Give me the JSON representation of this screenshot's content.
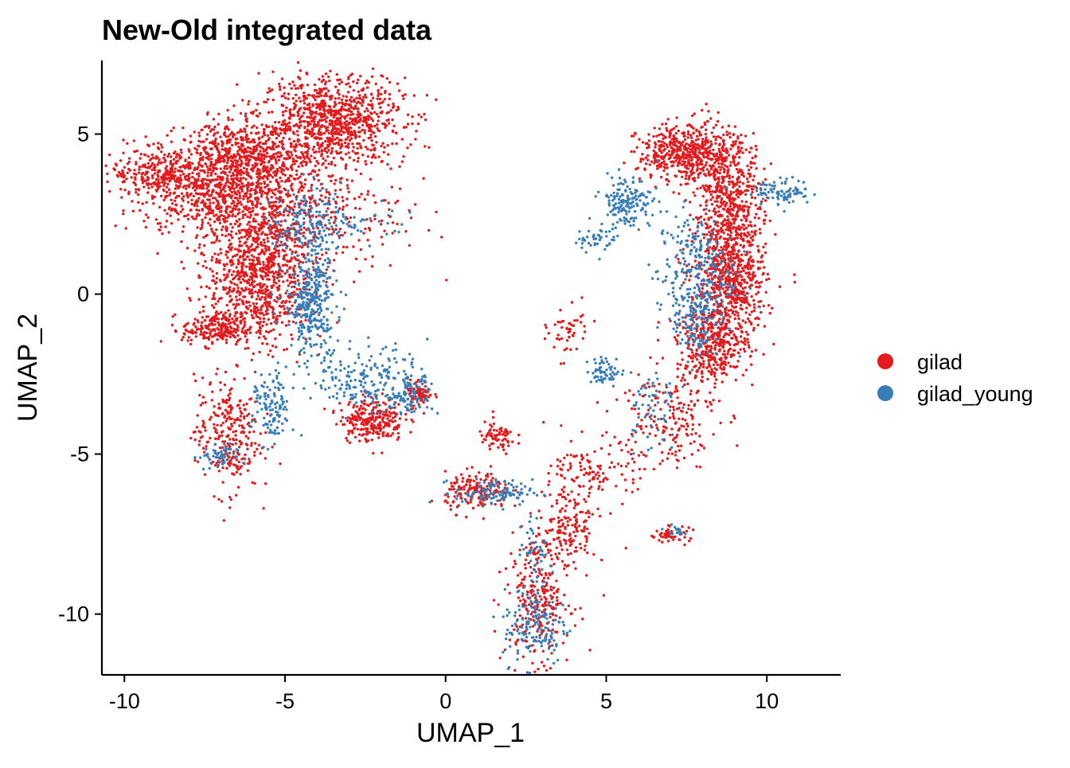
{
  "chart_data": {
    "type": "scatter",
    "title": "New-Old integrated data",
    "xlabel": "UMAP_1",
    "ylabel": "UMAP_2",
    "xlim": [
      -10.7,
      12.3
    ],
    "ylim": [
      -11.9,
      7.3
    ],
    "xticks": [
      -10,
      -5,
      0,
      5,
      10
    ],
    "yticks": [
      -10,
      -5,
      0,
      5
    ],
    "xtick_labels": [
      "-10",
      "-5",
      "0",
      "5",
      "10"
    ],
    "ytick_labels": [
      "-10",
      "-5",
      "0",
      "5"
    ],
    "legend_position": "right",
    "series": [
      {
        "name": "gilad",
        "color": "#E41A1C",
        "clusters": [
          {
            "cx": -3.5,
            "cy": 5.4,
            "sx": 1.1,
            "sy": 0.7,
            "n": 900
          },
          {
            "cx": -8.8,
            "cy": 3.8,
            "sx": 0.8,
            "sy": 0.35,
            "n": 300
          },
          {
            "cx": -6.3,
            "cy": 4.2,
            "sx": 1.0,
            "sy": 0.6,
            "n": 700
          },
          {
            "cx": -7.2,
            "cy": 2.9,
            "sx": 1.2,
            "sy": 0.6,
            "n": 450
          },
          {
            "cx": -5.8,
            "cy": 0.6,
            "sx": 0.8,
            "sy": 1.1,
            "n": 900
          },
          {
            "cx": -7.2,
            "cy": -1.1,
            "sx": 0.5,
            "sy": 0.25,
            "n": 200
          },
          {
            "cx": -4.5,
            "cy": 2.6,
            "sx": 1.6,
            "sy": 1.0,
            "n": 380
          },
          {
            "cx": -6.8,
            "cy": -4.4,
            "sx": 0.5,
            "sy": 0.9,
            "n": 280
          },
          {
            "cx": -2.3,
            "cy": -3.9,
            "sx": 0.5,
            "sy": 0.35,
            "n": 260
          },
          {
            "cx": -0.8,
            "cy": -3.1,
            "sx": 0.2,
            "sy": 0.2,
            "n": 70
          },
          {
            "cx": 1.0,
            "cy": -6.2,
            "sx": 0.5,
            "sy": 0.3,
            "n": 160
          },
          {
            "cx": 1.6,
            "cy": -4.5,
            "sx": 0.3,
            "sy": 0.25,
            "n": 70
          },
          {
            "cx": 2.9,
            "cy": -9.4,
            "sx": 0.5,
            "sy": 1.0,
            "n": 280
          },
          {
            "cx": 3.9,
            "cy": -7.3,
            "sx": 0.4,
            "sy": 0.7,
            "n": 140
          },
          {
            "cx": 7.6,
            "cy": 4.4,
            "sx": 0.8,
            "sy": 0.45,
            "n": 550
          },
          {
            "cx": 8.8,
            "cy": 2.6,
            "sx": 0.55,
            "sy": 1.1,
            "n": 550
          },
          {
            "cx": 8.9,
            "cy": 0.3,
            "sx": 0.55,
            "sy": 0.9,
            "n": 550
          },
          {
            "cx": 8.3,
            "cy": -1.6,
            "sx": 0.55,
            "sy": 0.6,
            "n": 380
          },
          {
            "cx": 6.9,
            "cy": -3.8,
            "sx": 0.8,
            "sy": 0.8,
            "n": 180
          },
          {
            "cx": 4.7,
            "cy": -5.6,
            "sx": 0.7,
            "sy": 0.5,
            "n": 120
          },
          {
            "cx": 7.0,
            "cy": -7.5,
            "sx": 0.3,
            "sy": 0.12,
            "n": 50
          },
          {
            "cx": 3.8,
            "cy": -1.2,
            "sx": 0.3,
            "sy": 0.4,
            "n": 50
          }
        ]
      },
      {
        "name": "gilad_young",
        "color": "#377EB8",
        "clusters": [
          {
            "cx": -4.2,
            "cy": -0.3,
            "sx": 0.4,
            "sy": 0.8,
            "n": 320
          },
          {
            "cx": -4.3,
            "cy": 2.2,
            "sx": 0.5,
            "sy": 0.6,
            "n": 160
          },
          {
            "cx": -2.3,
            "cy": -2.6,
            "sx": 0.9,
            "sy": 0.5,
            "n": 200
          },
          {
            "cx": -1.2,
            "cy": -3.2,
            "sx": 0.4,
            "sy": 0.3,
            "n": 80
          },
          {
            "cx": -3.0,
            "cy": 2.2,
            "sx": 1.2,
            "sy": 0.3,
            "n": 50
          },
          {
            "cx": -5.4,
            "cy": -3.6,
            "sx": 0.3,
            "sy": 0.6,
            "n": 120
          },
          {
            "cx": -7.1,
            "cy": -5.1,
            "sx": 0.3,
            "sy": 0.2,
            "n": 50
          },
          {
            "cx": 1.5,
            "cy": -6.2,
            "sx": 0.6,
            "sy": 0.2,
            "n": 110
          },
          {
            "cx": 2.8,
            "cy": -10.4,
            "sx": 0.5,
            "sy": 0.6,
            "n": 140
          },
          {
            "cx": 2.8,
            "cy": -8.2,
            "sx": 0.3,
            "sy": 0.7,
            "n": 50
          },
          {
            "cx": 5.6,
            "cy": 2.9,
            "sx": 0.4,
            "sy": 0.4,
            "n": 160
          },
          {
            "cx": 7.8,
            "cy": 0.6,
            "sx": 0.6,
            "sy": 1.0,
            "n": 280
          },
          {
            "cx": 7.7,
            "cy": -1.0,
            "sx": 0.3,
            "sy": 0.5,
            "n": 90
          },
          {
            "cx": 10.5,
            "cy": 3.2,
            "sx": 0.45,
            "sy": 0.2,
            "n": 90
          },
          {
            "cx": 5.0,
            "cy": -2.4,
            "sx": 0.3,
            "sy": 0.2,
            "n": 60
          },
          {
            "cx": 4.6,
            "cy": 1.7,
            "sx": 0.3,
            "sy": 0.2,
            "n": 40
          },
          {
            "cx": 7.1,
            "cy": -7.4,
            "sx": 0.15,
            "sy": 0.08,
            "n": 15
          },
          {
            "cx": 6.4,
            "cy": -3.5,
            "sx": 0.4,
            "sy": 0.7,
            "n": 60
          }
        ]
      }
    ]
  }
}
